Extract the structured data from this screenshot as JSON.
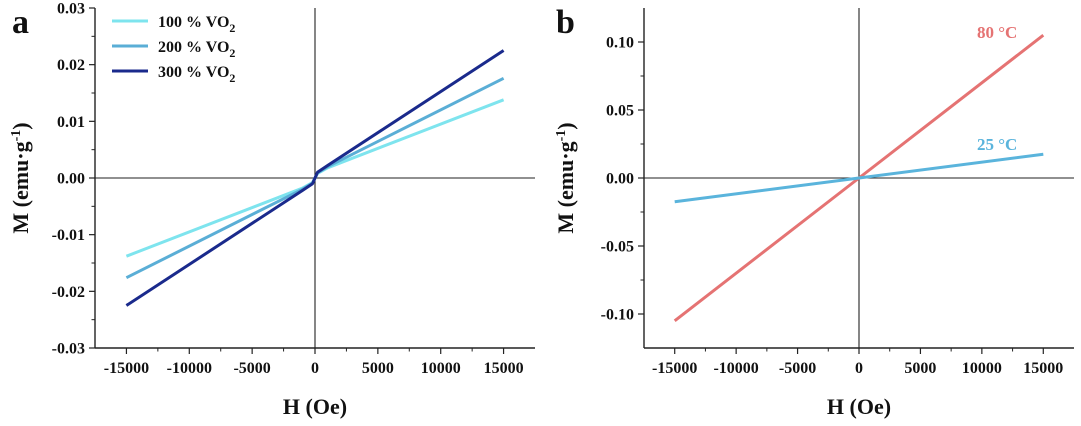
{
  "chart_data": [
    {
      "panel": "a",
      "type": "line",
      "xlabel": "H (Oe)",
      "ylabel_main": "M (emu·g",
      "ylabel_sup": "-1",
      "ylabel_close": ")",
      "xlim": [
        -17500,
        17500
      ],
      "ylim": [
        -0.03,
        0.03
      ],
      "xticks": [
        -15000,
        -10000,
        -5000,
        0,
        5000,
        10000,
        15000
      ],
      "xtick_labels": [
        "-15000",
        "-10000",
        "-5000",
        "0",
        "5000",
        "10000",
        "15000"
      ],
      "yticks": [
        -0.03,
        -0.02,
        -0.01,
        0.0,
        0.01,
        0.02,
        0.03
      ],
      "ytick_labels": [
        "-0.03",
        "-0.02",
        "-0.01",
        "0.00",
        "0.01",
        "0.02",
        "0.03"
      ],
      "grid": false,
      "legend_position": "top-left",
      "series": [
        {
          "name": "100 % VO",
          "name_sub": "2",
          "color": "#7ee4ee",
          "x": [
            -15000,
            -1000,
            -200,
            0,
            200,
            1000,
            15000
          ],
          "y": [
            -0.0138,
            -0.0018,
            -0.0008,
            0.0,
            0.0008,
            0.0018,
            0.0138
          ]
        },
        {
          "name": "200 % VO",
          "name_sub": "2",
          "color": "#5aaed6",
          "x": [
            -15000,
            -1000,
            -200,
            0,
            200,
            1000,
            15000
          ],
          "y": [
            -0.0176,
            -0.002,
            -0.0009,
            0.0,
            0.0009,
            0.002,
            0.0176
          ]
        },
        {
          "name": "300 % VO",
          "name_sub": "2",
          "color": "#1a2a8c",
          "x": [
            -15000,
            -1000,
            -200,
            0,
            200,
            1000,
            15000
          ],
          "y": [
            -0.0225,
            -0.0022,
            -0.001,
            0.0,
            0.001,
            0.0022,
            0.0225
          ]
        }
      ]
    },
    {
      "panel": "b",
      "type": "line",
      "xlabel": "H (Oe)",
      "ylabel_main": "M (emu·g",
      "ylabel_sup": "-1",
      "ylabel_close": ")",
      "xlim": [
        -17500,
        17500
      ],
      "ylim": [
        -0.125,
        0.125
      ],
      "xticks": [
        -15000,
        -10000,
        -5000,
        0,
        5000,
        10000,
        15000
      ],
      "xtick_labels": [
        "-15000",
        "-10000",
        "-5000",
        "0",
        "5000",
        "10000",
        "15000"
      ],
      "yticks": [
        -0.1,
        -0.05,
        0.0,
        0.05,
        0.1
      ],
      "ytick_labels": [
        "-0.10",
        "-0.05",
        "0.00",
        "0.05",
        "0.10"
      ],
      "grid": false,
      "series": [
        {
          "name": "80 °C",
          "color": "#e57373",
          "x": [
            -15000,
            0,
            15000
          ],
          "y": [
            -0.105,
            0.0,
            0.105
          ]
        },
        {
          "name": "25 °C",
          "color": "#5ab4dc",
          "x": [
            -15000,
            0,
            15000
          ],
          "y": [
            -0.0175,
            0.0,
            0.0175
          ]
        }
      ]
    }
  ]
}
